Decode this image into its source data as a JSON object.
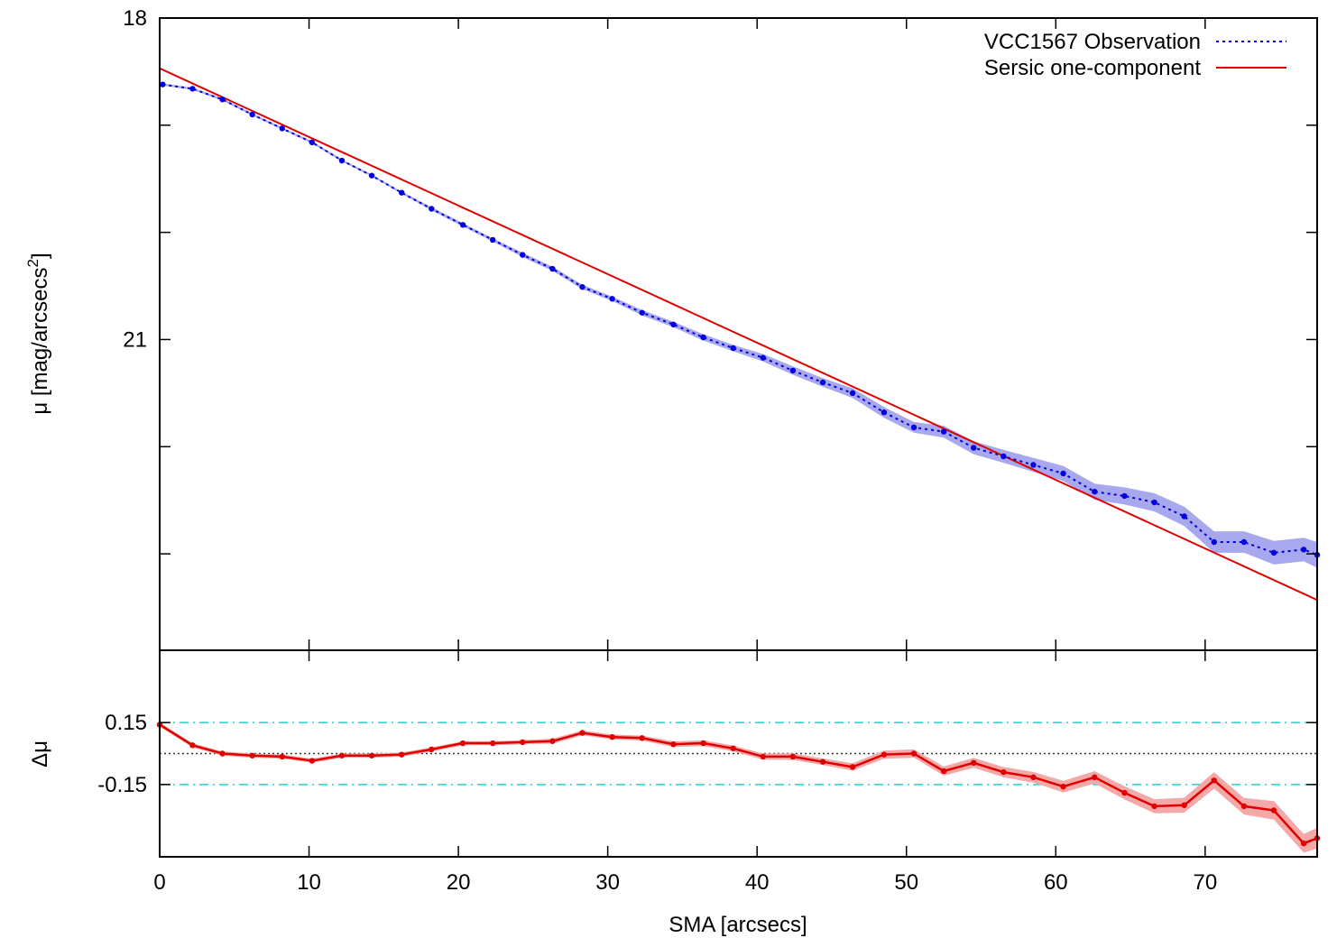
{
  "chart_data": [
    {
      "type": "line",
      "panel": "top",
      "xlabel": "",
      "ylabel": "μ [mag/arcsecs",
      "ylabel_sup": "2",
      "ylabel_close": "]",
      "xlim": [
        0,
        77.5
      ],
      "ylim": [
        23.9,
        18
      ],
      "y_inverted": true,
      "yticks_labeled": [
        18,
        21
      ],
      "yticks_minor": [
        19,
        20,
        22,
        23
      ],
      "xticks": [
        0,
        10,
        20,
        30,
        40,
        50,
        60,
        70
      ],
      "legend": {
        "position": "top-right",
        "entries": [
          "VCC1567 Observation",
          "Sersic one-component"
        ]
      },
      "series": [
        {
          "name": "VCC1567 Observation",
          "style": "dotted",
          "color": "#0000e0",
          "band_color": "#a8a8ee",
          "x": [
            0.2,
            2.2,
            4.2,
            6.2,
            8.2,
            10.2,
            12.2,
            14.2,
            16.2,
            18.2,
            20.3,
            22.3,
            24.3,
            26.3,
            28.3,
            30.3,
            32.3,
            34.4,
            36.4,
            38.4,
            40.4,
            42.4,
            44.4,
            46.4,
            48.5,
            50.5,
            52.5,
            54.5,
            56.5,
            58.5,
            60.5,
            62.6,
            64.6,
            66.6,
            68.6,
            70.6,
            72.6,
            74.6,
            76.6,
            77.5
          ],
          "y": [
            18.62,
            18.66,
            18.76,
            18.9,
            19.03,
            19.16,
            19.33,
            19.47,
            19.63,
            19.78,
            19.93,
            20.07,
            20.21,
            20.34,
            20.51,
            20.62,
            20.75,
            20.86,
            20.98,
            21.08,
            21.17,
            21.29,
            21.4,
            21.5,
            21.68,
            21.82,
            21.86,
            22.01,
            22.09,
            22.17,
            22.25,
            22.42,
            22.46,
            22.52,
            22.65,
            22.89,
            22.89,
            22.99,
            22.96,
            23.01
          ],
          "band_halfwidth": [
            0.01,
            0.01,
            0.01,
            0.01,
            0.01,
            0.01,
            0.01,
            0.01,
            0.01,
            0.015,
            0.015,
            0.015,
            0.02,
            0.02,
            0.02,
            0.02,
            0.025,
            0.025,
            0.03,
            0.03,
            0.035,
            0.04,
            0.04,
            0.045,
            0.05,
            0.05,
            0.055,
            0.06,
            0.06,
            0.065,
            0.07,
            0.075,
            0.08,
            0.085,
            0.09,
            0.1,
            0.1,
            0.11,
            0.11,
            0.12
          ]
        },
        {
          "name": "Sersic one-component",
          "style": "solid",
          "color": "#e00000",
          "x": [
            0,
            77.5
          ],
          "y": [
            18.47,
            23.43
          ]
        }
      ]
    },
    {
      "type": "line",
      "panel": "bottom",
      "xlabel": "SMA [arcsecs]",
      "ylabel": "Δμ",
      "xlim": [
        0,
        77.5
      ],
      "ylim": [
        -0.5,
        0.5
      ],
      "yticks_labeled": [
        {
          "value": 0.15,
          "label": "0.15"
        },
        {
          "value": -0.15,
          "label": "-0.15"
        }
      ],
      "xticks": [
        0,
        10,
        20,
        30,
        40,
        50,
        60,
        70
      ],
      "reference_lines": [
        {
          "y": 0.15,
          "style": "dash-dot",
          "color": "#20d0d0"
        },
        {
          "y": -0.15,
          "style": "dash-dot",
          "color": "#20d0d0"
        },
        {
          "y": 0,
          "style": "dotted",
          "color": "#333333"
        }
      ],
      "series": [
        {
          "name": "",
          "style": "solid",
          "color": "#e00000",
          "band_color": "#f4a8a8",
          "x": [
            0,
            2.2,
            4.2,
            6.2,
            8.2,
            10.2,
            12.2,
            14.2,
            16.2,
            18.2,
            20.3,
            22.3,
            24.3,
            26.3,
            28.3,
            30.3,
            32.3,
            34.4,
            36.4,
            38.4,
            40.4,
            42.4,
            44.4,
            46.4,
            48.5,
            50.5,
            52.5,
            54.5,
            56.5,
            58.5,
            60.5,
            62.6,
            64.6,
            66.6,
            68.6,
            70.6,
            72.6,
            74.6,
            76.6,
            77.5
          ],
          "y": [
            0.14,
            0.04,
            0.0,
            -0.01,
            -0.015,
            -0.035,
            -0.01,
            -0.01,
            -0.005,
            0.02,
            0.05,
            0.05,
            0.055,
            0.06,
            0.1,
            0.08,
            0.075,
            0.045,
            0.05,
            0.025,
            -0.015,
            -0.015,
            -0.04,
            -0.065,
            -0.005,
            0.0,
            -0.085,
            -0.045,
            -0.09,
            -0.115,
            -0.16,
            -0.115,
            -0.19,
            -0.255,
            -0.25,
            -0.13,
            -0.255,
            -0.275,
            -0.435,
            -0.41
          ],
          "band_halfwidth": [
            0.01,
            0.01,
            0.01,
            0.01,
            0.01,
            0.01,
            0.01,
            0.01,
            0.01,
            0.01,
            0.01,
            0.01,
            0.01,
            0.012,
            0.012,
            0.012,
            0.012,
            0.014,
            0.014,
            0.014,
            0.015,
            0.016,
            0.016,
            0.018,
            0.02,
            0.02,
            0.022,
            0.024,
            0.025,
            0.026,
            0.028,
            0.03,
            0.032,
            0.034,
            0.036,
            0.04,
            0.04,
            0.045,
            0.045,
            0.05
          ]
        }
      ]
    }
  ],
  "colors": {
    "observation": "#0000e0",
    "observation_band": "#a8a8ee",
    "sersic": "#e00000",
    "residual_band": "#f4a8a8",
    "reference": "#20d0d0"
  }
}
